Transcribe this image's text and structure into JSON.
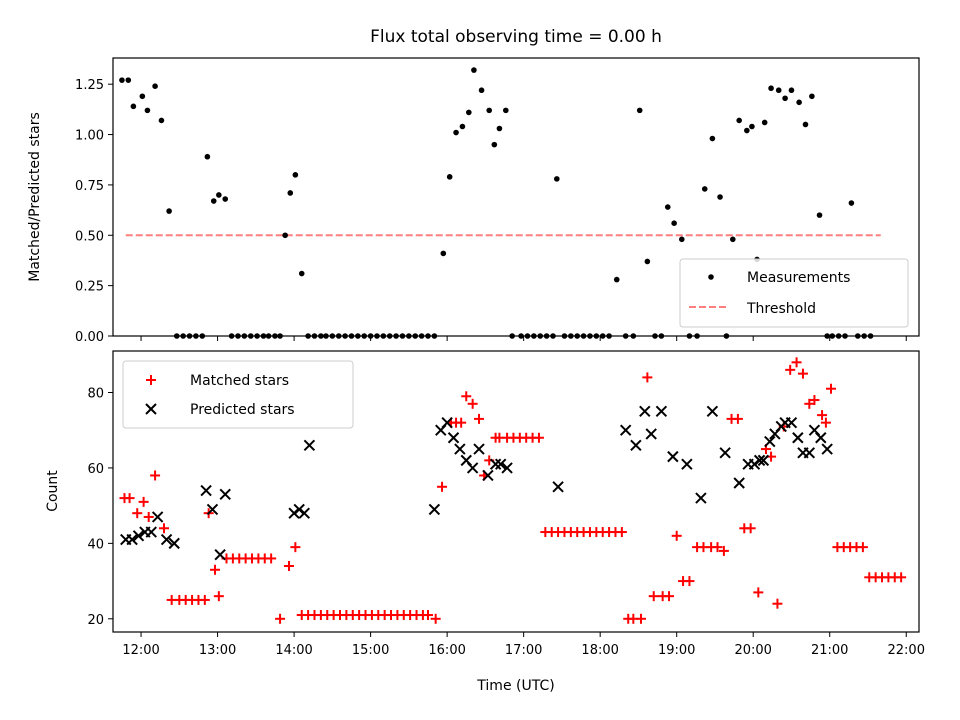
{
  "title": "Flux total observing time = 0.00 h",
  "colors": {
    "measurements": "#000000",
    "threshold": "#ff7f7f",
    "matched": "#ff0000",
    "predicted": "#000000"
  },
  "chart_data": [
    {
      "type": "scatter",
      "ylabel": "Matched/Predicted stars",
      "xlabel": "",
      "xlim": [
        "11:38",
        "22:10"
      ],
      "ylim": [
        0,
        1.38
      ],
      "yticks": [
        "0.00",
        "0.25",
        "0.50",
        "0.75",
        "1.00",
        "1.25"
      ],
      "legend": [
        "Measurements",
        "Threshold"
      ],
      "legend_position": "lower right",
      "threshold": {
        "name": "Threshold",
        "value": 0.5,
        "x": [
          "11:48",
          "21:40"
        ]
      },
      "series": [
        {
          "name": "Measurements",
          "x": [
            "11:45",
            "11:50",
            "11:54",
            "12:01",
            "12:05",
            "12:11",
            "12:16",
            "12:22",
            "12:28",
            "12:33",
            "12:38",
            "12:43",
            "12:48",
            "12:52",
            "12:57",
            "13:01",
            "13:06",
            "13:11",
            "13:16",
            "13:21",
            "13:26",
            "13:31",
            "13:36",
            "13:40",
            "13:45",
            "13:49",
            "13:53",
            "13:57",
            "14:01",
            "14:06",
            "14:11",
            "14:16",
            "14:21",
            "14:25",
            "14:30",
            "14:35",
            "14:40",
            "14:45",
            "14:50",
            "14:55",
            "15:00",
            "15:05",
            "15:10",
            "15:15",
            "15:20",
            "15:25",
            "15:30",
            "15:35",
            "15:40",
            "15:45",
            "15:50",
            "15:57",
            "16:02",
            "16:07",
            "16:12",
            "16:17",
            "16:21",
            "16:27",
            "16:33",
            "16:37",
            "16:41",
            "16:46",
            "16:51",
            "16:58",
            "17:03",
            "17:08",
            "17:13",
            "17:18",
            "17:23",
            "17:26",
            "17:32",
            "17:37",
            "17:42",
            "17:47",
            "17:52",
            "17:57",
            "18:02",
            "18:07",
            "18:13",
            "18:20",
            "18:26",
            "18:31",
            "18:37",
            "18:43",
            "18:48",
            "18:53",
            "18:58",
            "19:04",
            "19:10",
            "19:16",
            "19:22",
            "19:28",
            "19:34",
            "19:39",
            "19:44",
            "19:49",
            "19:55",
            "19:59",
            "20:03",
            "20:09",
            "20:14",
            "20:20",
            "20:25",
            "20:30",
            "20:36",
            "20:41",
            "20:46",
            "20:52",
            "20:58",
            "21:02",
            "21:07",
            "21:12",
            "21:17",
            "21:22",
            "21:27",
            "21:32"
          ],
          "y": [
            1.27,
            1.27,
            1.14,
            1.19,
            1.12,
            1.24,
            1.07,
            0.62,
            0.0,
            0.0,
            0.0,
            0.0,
            0.0,
            0.89,
            0.67,
            0.7,
            0.68,
            0.0,
            0.0,
            0.0,
            0.0,
            0.0,
            0.0,
            0.0,
            0.0,
            0.0,
            0.5,
            0.71,
            0.8,
            0.31,
            0.0,
            0.0,
            0.0,
            0.0,
            0.0,
            0.0,
            0.0,
            0.0,
            0.0,
            0.0,
            0.0,
            0.0,
            0.0,
            0.0,
            0.0,
            0.0,
            0.0,
            0.0,
            0.0,
            0.0,
            0.0,
            0.41,
            0.79,
            1.01,
            1.04,
            1.11,
            1.32,
            1.22,
            1.12,
            0.95,
            1.03,
            1.12,
            0.0,
            0.0,
            0.0,
            0.0,
            0.0,
            0.0,
            0.0,
            0.78,
            0.0,
            0.0,
            0.0,
            0.0,
            0.0,
            0.0,
            0.0,
            0.0,
            0.28,
            0.0,
            0.0,
            1.12,
            0.37,
            0.0,
            0.0,
            0.64,
            0.56,
            0.48,
            0.0,
            0.0,
            0.73,
            0.98,
            0.69,
            0.0,
            0.48,
            1.07,
            1.02,
            1.04,
            0.38,
            1.06,
            1.23,
            1.22,
            1.18,
            1.22,
            1.16,
            1.05,
            1.19,
            0.6,
            0.0,
            0.0,
            0.0,
            0.0,
            0.66,
            0.0,
            0.0,
            0.0
          ]
        }
      ]
    },
    {
      "type": "scatter",
      "ylabel": "Count",
      "xlabel": "Time (UTC)",
      "xlim": [
        "11:38",
        "22:10"
      ],
      "ylim": [
        16.5,
        91
      ],
      "xticks": [
        "12:00",
        "13:00",
        "14:00",
        "15:00",
        "16:00",
        "17:00",
        "18:00",
        "19:00",
        "20:00",
        "21:00",
        "22:00"
      ],
      "yticks": [
        "20",
        "40",
        "60",
        "80"
      ],
      "legend": [
        "Matched stars",
        "Predicted stars"
      ],
      "legend_position": "upper left",
      "series": [
        {
          "name": "Matched stars",
          "x": [
            "11:47",
            "11:51",
            "11:57",
            "12:02",
            "12:06",
            "12:11",
            "12:18",
            "12:24",
            "12:30",
            "12:35",
            "12:40",
            "12:45",
            "12:50",
            "12:53",
            "12:58",
            "13:01",
            "13:07",
            "13:12",
            "13:17",
            "13:22",
            "13:27",
            "13:32",
            "13:37",
            "13:42",
            "13:49",
            "13:56",
            "14:01",
            "14:06",
            "14:11",
            "14:16",
            "14:21",
            "14:26",
            "14:31",
            "14:36",
            "14:41",
            "14:46",
            "14:51",
            "14:56",
            "15:01",
            "15:06",
            "15:11",
            "15:16",
            "15:21",
            "15:26",
            "15:31",
            "15:36",
            "15:41",
            "15:45",
            "15:51",
            "15:56",
            "16:03",
            "16:07",
            "16:11",
            "16:15",
            "16:20",
            "16:25",
            "16:29",
            "16:33",
            "16:38",
            "16:41",
            "16:47",
            "16:52",
            "16:57",
            "17:02",
            "17:07",
            "17:12",
            "17:17",
            "17:22",
            "17:27",
            "17:32",
            "17:37",
            "17:42",
            "17:47",
            "17:52",
            "17:57",
            "18:02",
            "18:07",
            "18:12",
            "18:17",
            "18:22",
            "18:26",
            "18:32",
            "18:37",
            "18:42",
            "18:49",
            "18:54",
            "19:00",
            "19:05",
            "19:10",
            "19:16",
            "19:21",
            "19:27",
            "19:32",
            "19:37",
            "19:43",
            "19:48",
            "19:53",
            "19:58",
            "20:04",
            "20:10",
            "20:14",
            "20:19",
            "20:24",
            "20:29",
            "20:34",
            "20:39",
            "20:44",
            "20:48",
            "20:54",
            "20:57",
            "21:01",
            "21:06",
            "21:11",
            "21:16",
            "21:21",
            "21:26",
            "21:31",
            "21:36",
            "21:41",
            "21:46",
            "21:51",
            "21:56"
          ],
          "y": [
            52,
            52,
            48,
            51,
            47,
            58,
            44,
            25,
            25,
            25,
            25,
            25,
            25,
            48,
            33,
            26,
            36,
            36,
            36,
            36,
            36,
            36,
            36,
            36,
            20,
            34,
            39,
            21,
            21,
            21,
            21,
            21,
            21,
            21,
            21,
            21,
            21,
            21,
            21,
            21,
            21,
            21,
            21,
            21,
            21,
            21,
            21,
            21,
            20,
            55,
            72,
            72,
            72,
            79,
            77,
            73,
            58,
            62,
            68,
            68,
            68,
            68,
            68,
            68,
            68,
            68,
            43,
            43,
            43,
            43,
            43,
            43,
            43,
            43,
            43,
            43,
            43,
            43,
            43,
            20,
            20,
            20,
            84,
            26,
            26,
            26,
            42,
            30,
            30,
            39,
            39,
            39,
            39,
            38,
            73,
            73,
            44,
            44,
            27,
            65,
            63,
            24,
            71,
            86,
            88,
            85,
            77,
            78,
            74,
            72,
            81,
            39,
            39,
            39,
            39,
            39,
            31,
            31,
            31,
            31,
            31,
            31
          ]
        },
        {
          "name": "Predicted stars",
          "x": [
            "11:48",
            "11:53",
            "11:58",
            "12:03",
            "12:08",
            "12:13",
            "12:20",
            "12:26",
            "12:51",
            "12:56",
            "13:02",
            "13:06",
            "14:00",
            "14:04",
            "14:08",
            "14:12",
            "15:50",
            "15:55",
            "16:00",
            "16:05",
            "16:10",
            "16:15",
            "16:20",
            "16:25",
            "16:32",
            "16:38",
            "16:42",
            "16:47",
            "17:27",
            "18:20",
            "18:28",
            "18:35",
            "18:40",
            "18:48",
            "18:57",
            "19:08",
            "19:19",
            "19:28",
            "19:38",
            "19:49",
            "19:56",
            "20:01",
            "20:05",
            "20:08",
            "20:13",
            "20:17",
            "20:22",
            "20:25",
            "20:30",
            "20:35",
            "20:39",
            "20:44",
            "20:48",
            "20:53",
            "20:58"
          ],
          "y": [
            41,
            41,
            42,
            43,
            43,
            47,
            41,
            40,
            54,
            49,
            37,
            53,
            48,
            49,
            48,
            66,
            49,
            70,
            72,
            68,
            65,
            62,
            60,
            65,
            58,
            61,
            61,
            60,
            55,
            70,
            66,
            75,
            69,
            75,
            63,
            61,
            52,
            75,
            64,
            56,
            61,
            61,
            62,
            62,
            67,
            69,
            71,
            72,
            72,
            68,
            64,
            64,
            70,
            68,
            65
          ]
        }
      ]
    }
  ]
}
